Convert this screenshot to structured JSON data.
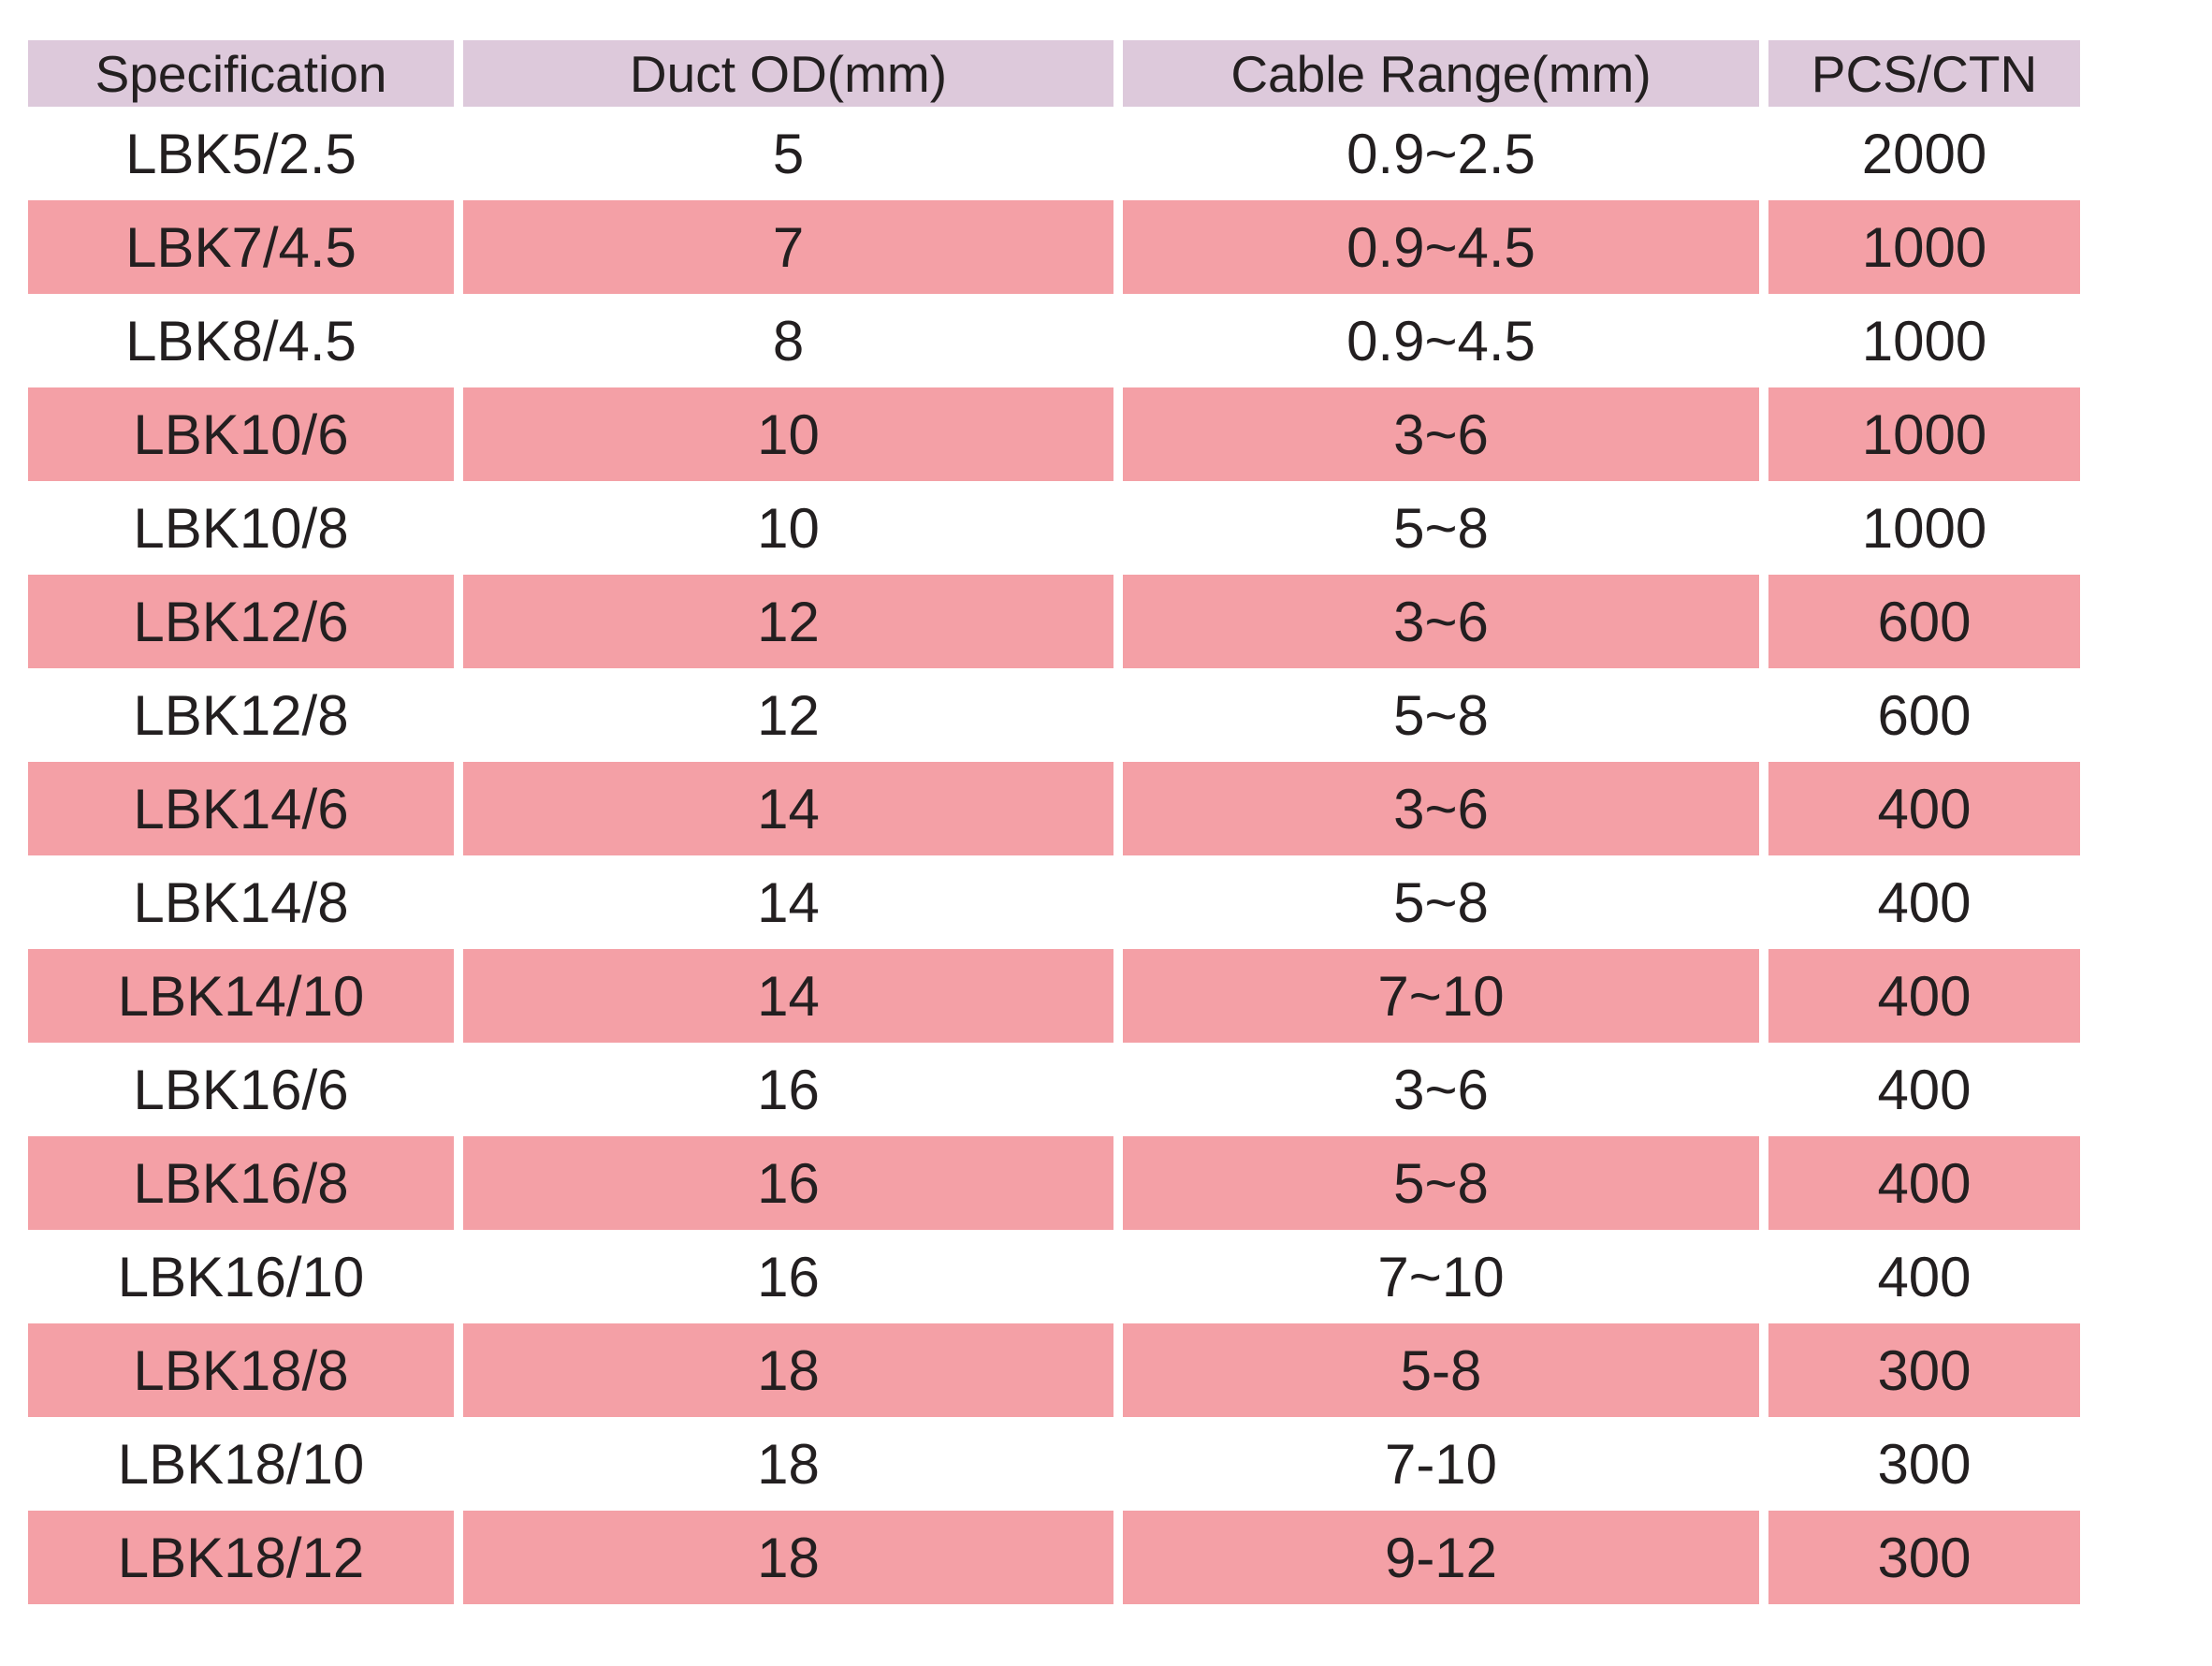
{
  "chart_data": {
    "type": "table",
    "columns": [
      "Specification",
      "Duct OD(mm)",
      "Cable Range(mm)",
      "PCS/CTN"
    ],
    "rows": [
      [
        "LBK5/2.5",
        "5",
        "0.9~2.5",
        "2000"
      ],
      [
        "LBK7/4.5",
        "7",
        "0.9~4.5",
        "1000"
      ],
      [
        "LBK8/4.5",
        "8",
        "0.9~4.5",
        "1000"
      ],
      [
        "LBK10/6",
        "10",
        "3~6",
        "1000"
      ],
      [
        "LBK10/8",
        "10",
        "5~8",
        "1000"
      ],
      [
        "LBK12/6",
        "12",
        "3~6",
        "600"
      ],
      [
        "LBK12/8",
        "12",
        "5~8",
        "600"
      ],
      [
        "LBK14/6",
        "14",
        "3~6",
        "400"
      ],
      [
        "LBK14/8",
        "14",
        "5~8",
        "400"
      ],
      [
        "LBK14/10",
        "14",
        "7~10",
        "400"
      ],
      [
        "LBK16/6",
        "16",
        "3~6",
        "400"
      ],
      [
        "LBK16/8",
        "16",
        "5~8",
        "400"
      ],
      [
        "LBK16/10",
        "16",
        "7~10",
        "400"
      ],
      [
        "LBK18/8",
        "18",
        "5-8",
        "300"
      ],
      [
        "LBK18/10",
        "18",
        "7-10",
        "300"
      ],
      [
        "LBK18/12",
        "18",
        "9-12",
        "300"
      ]
    ],
    "layout": {
      "legend": "none",
      "grid": "off",
      "row_striping": "odd data rows white, even data rows pink, header lavender"
    }
  },
  "colors": {
    "header_bg": "#DDC9DB",
    "alt_row_bg": "#F4A0A6",
    "text": "#231F20",
    "page_bg": "#FFFFFF"
  }
}
